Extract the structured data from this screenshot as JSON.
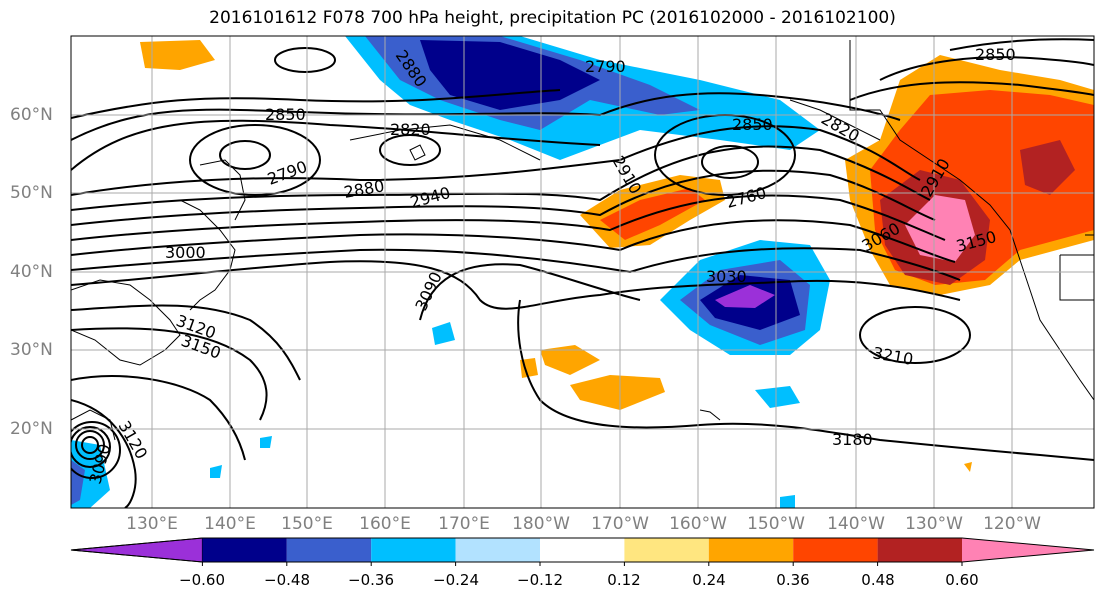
{
  "title": "2016101612 F078 700 hPa height, precipitation PC (2016102000 - 2016102100)",
  "lon_labels": [
    "130°E",
    "140°E",
    "150°E",
    "160°E",
    "170°E",
    "180°W",
    "170°W",
    "160°W",
    "150°W",
    "140°W",
    "130°W",
    "120°W"
  ],
  "lat_labels": [
    "60°N",
    "50°N",
    "40°N",
    "30°N",
    "20°N"
  ],
  "contour_labels": [
    "2850",
    "2880",
    "2790",
    "2820",
    "2850",
    "2790",
    "2880",
    "2940",
    "3000",
    "3090",
    "3030",
    "2910",
    "2760",
    "2820",
    "2850",
    "2910",
    "3060",
    "3150",
    "3210",
    "3180",
    "3150",
    "3120",
    "3090",
    "3120"
  ],
  "colorbar": {
    "ticks": [
      "−0.60",
      "−0.48",
      "−0.36",
      "−0.24",
      "−0.12",
      "0.12",
      "0.24",
      "0.36",
      "0.48",
      "0.60"
    ],
    "colors": [
      "#9b30d9",
      "#00008b",
      "#3a5fcd",
      "#00bfff",
      "#b2e2ff",
      "#ffffff",
      "#ffe680",
      "#ffa500",
      "#ff4500",
      "#b22222",
      "#ff82b4"
    ]
  }
}
